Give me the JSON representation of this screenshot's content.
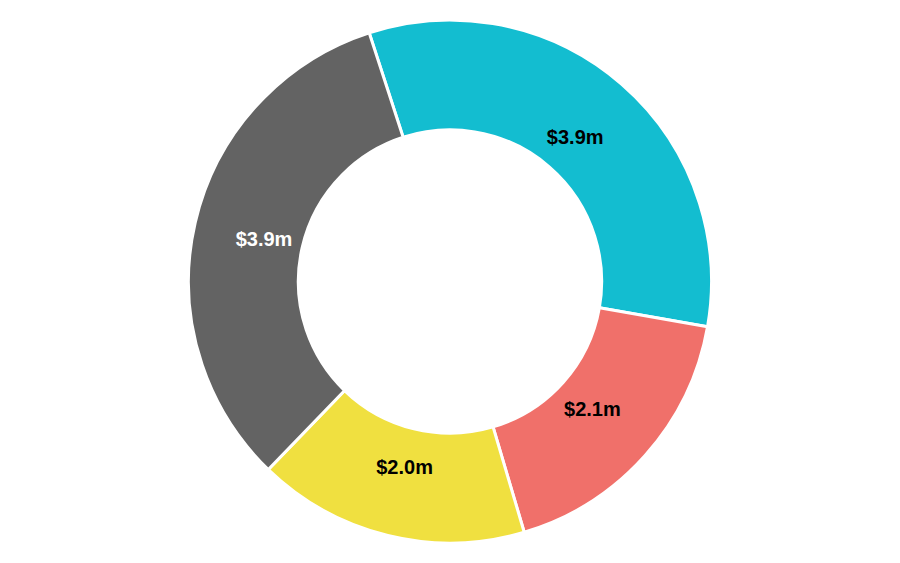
{
  "chart_data": {
    "type": "donut",
    "values": [
      3.9,
      2.1,
      2.0,
      3.9
    ],
    "value_labels": [
      "$3.9m",
      "$2.1m",
      "$2.0m",
      "$3.9m"
    ],
    "colors": [
      "#13BDD0",
      "#F0706A",
      "#F0E040",
      "#636363"
    ],
    "data_labels": true
  }
}
